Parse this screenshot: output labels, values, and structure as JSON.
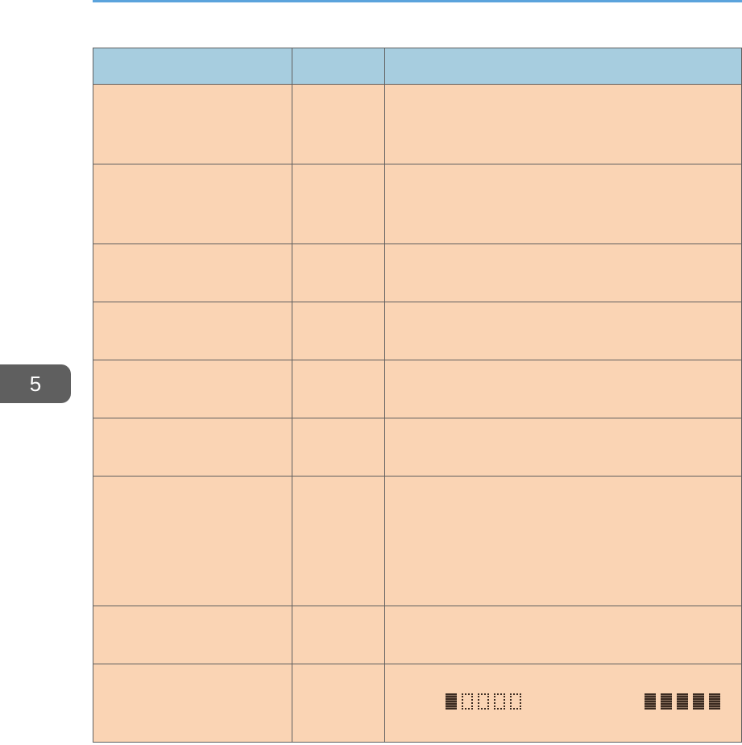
{
  "chapter_tab": {
    "label": "5"
  },
  "colors": {
    "accent_line": "#5ba3dc",
    "header_bg": "#a7cddf",
    "row_bg": "#fad4b4",
    "tab_bg": "#5f5f5f"
  },
  "table": {
    "headers": [
      "",
      "",
      ""
    ],
    "row_count": 9,
    "last_row_indicators": [
      {
        "icon": "level-indicator-1-of-5",
        "filled": 1,
        "total": 5
      },
      {
        "icon": "level-indicator-5-of-5",
        "filled": 5,
        "total": 5
      }
    ]
  }
}
